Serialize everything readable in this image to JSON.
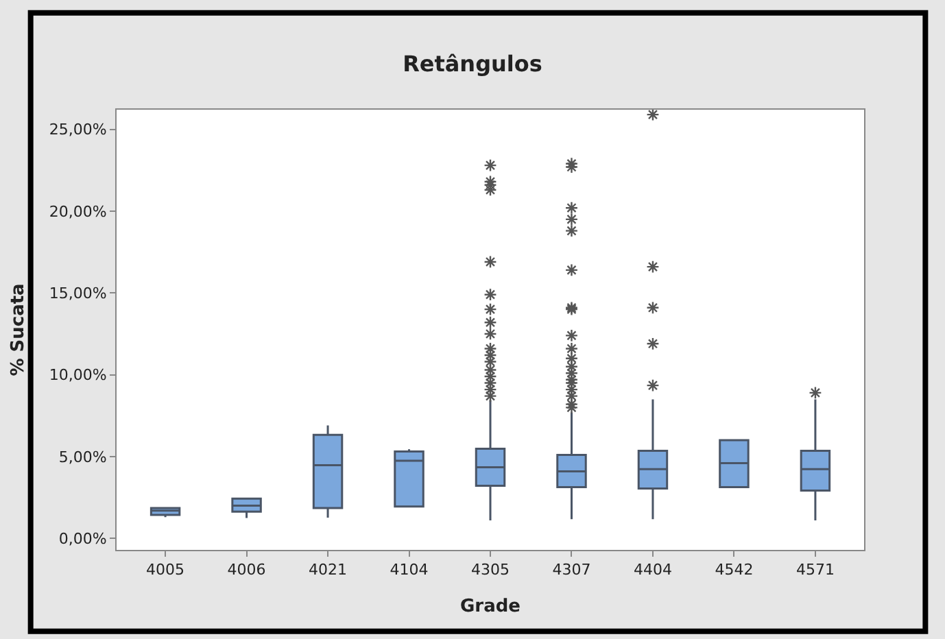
{
  "chart_data": {
    "type": "box",
    "title": "Retângulos",
    "xlabel": "Grade",
    "ylabel": "% Sucata",
    "categories": [
      "4005",
      "4006",
      "4021",
      "4104",
      "4305",
      "4307",
      "4404",
      "4542",
      "4571"
    ],
    "ylim": [
      -0.7,
      26.2
    ],
    "yticks": [
      {
        "value": 0,
        "label": "0,00%"
      },
      {
        "value": 5,
        "label": "5,00%"
      },
      {
        "value": 10,
        "label": "10,00%"
      },
      {
        "value": 15,
        "label": "15,00%"
      },
      {
        "value": 20,
        "label": "20,00%"
      },
      {
        "value": 25,
        "label": "25,00%"
      }
    ],
    "color": "#7ba7dc",
    "marker": "star",
    "boxes": [
      {
        "low": 1.3,
        "q1": 1.44,
        "median": 1.7,
        "q3": 1.86,
        "high": 1.86
      },
      {
        "low": 1.25,
        "q1": 1.64,
        "median": 2.0,
        "q3": 2.43,
        "high": 2.43
      },
      {
        "low": 1.27,
        "q1": 1.86,
        "median": 4.47,
        "q3": 6.33,
        "high": 6.9
      },
      {
        "low": 1.95,
        "q1": 1.95,
        "median": 4.75,
        "q3": 5.31,
        "high": 5.45
      },
      {
        "low": 1.1,
        "q1": 3.22,
        "median": 4.35,
        "q3": 5.48,
        "high": 8.45,
        "outliers": [
          22.8,
          21.8,
          21.6,
          21.3,
          16.9,
          14.9,
          14.0,
          13.2,
          12.5,
          11.6,
          11.2,
          10.8,
          10.3,
          9.9,
          9.5,
          9.1,
          8.7
        ]
      },
      {
        "low": 1.18,
        "q1": 3.13,
        "median": 4.1,
        "q3": 5.1,
        "high": 7.7,
        "outliers": [
          22.9,
          22.7,
          20.2,
          19.5,
          18.8,
          16.4,
          14.1,
          14.0,
          12.4,
          11.6,
          11.0,
          10.5,
          10.1,
          9.7,
          9.5,
          9.1,
          8.7,
          8.2,
          8.0
        ]
      },
      {
        "low": 1.18,
        "q1": 3.05,
        "median": 4.23,
        "q3": 5.35,
        "high": 8.5,
        "outliers": [
          25.9,
          16.6,
          14.1,
          11.9,
          9.35
        ]
      },
      {
        "low": 3.13,
        "q1": 3.13,
        "median": 4.6,
        "q3": 6.0,
        "high": 6.0
      },
      {
        "low": 1.1,
        "q1": 2.92,
        "median": 4.23,
        "q3": 5.35,
        "high": 8.5,
        "outliers": [
          8.9
        ]
      }
    ]
  }
}
